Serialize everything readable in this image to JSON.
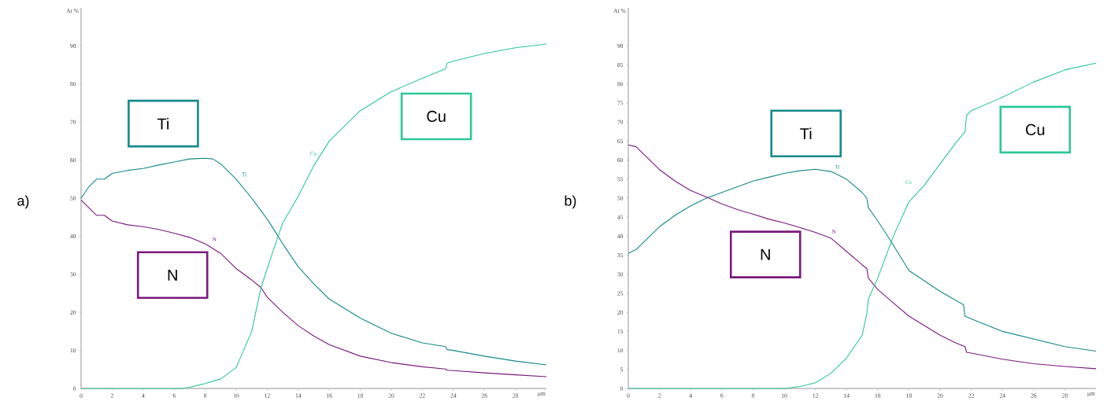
{
  "chart_data": [
    {
      "type": "line",
      "title": "a)",
      "xlabel": "μm",
      "ylabel": "At %",
      "xlim": [
        0,
        30
      ],
      "ylim": [
        0,
        100
      ],
      "xticks": [
        0,
        2,
        4,
        6,
        8,
        10,
        12,
        14,
        16,
        18,
        20,
        22,
        24,
        26,
        28
      ],
      "yticks": [
        0,
        10,
        20,
        30,
        40,
        50,
        60,
        70,
        80,
        90
      ],
      "grid": false,
      "legend": false,
      "marker": "none",
      "line_style": "solid",
      "series": [
        {
          "name": "Ti",
          "color": "#16898a",
          "x": [
            0,
            0.5,
            1,
            1.5,
            2,
            3,
            4,
            5,
            6,
            7,
            8,
            8.5,
            9,
            10,
            11,
            12,
            12.7,
            13,
            14,
            15,
            16,
            18,
            20,
            22,
            23.5,
            23.6,
            24,
            26,
            28,
            30
          ],
          "values": [
            50,
            53,
            55,
            55,
            56.5,
            57.3,
            57.8,
            58.7,
            59.5,
            60.3,
            60.5,
            60.3,
            59,
            55,
            50,
            44.5,
            40,
            38,
            32,
            27.5,
            23.5,
            18.5,
            14.5,
            12,
            11,
            10.2,
            10,
            8.5,
            7.2,
            6.2
          ]
        },
        {
          "name": "N",
          "color": "#7a1a7e",
          "x": [
            0,
            0.5,
            1,
            1.5,
            2,
            3,
            4,
            5,
            6,
            7,
            8,
            9,
            10,
            11,
            11.6,
            12,
            13,
            14,
            15,
            16,
            18,
            20,
            22,
            23.5,
            23.6,
            24,
            26,
            28,
            30
          ],
          "values": [
            49.5,
            47.5,
            45.5,
            45.5,
            44,
            43,
            42.5,
            41.8,
            40.8,
            39.7,
            38,
            35.5,
            31.5,
            28.5,
            26.5,
            24,
            20,
            16.5,
            13.8,
            11.5,
            8.5,
            6.8,
            5.7,
            5.1,
            4.8,
            4.7,
            4.1,
            3.6,
            3.1
          ]
        },
        {
          "name": "Cu",
          "color": "#2ec797",
          "x": [
            0,
            6.5,
            7,
            8,
            9,
            10,
            11,
            11.6,
            12,
            12.7,
            13,
            14,
            15,
            16,
            18,
            20,
            22,
            23.5,
            23.6,
            24,
            26,
            28,
            30
          ],
          "values": [
            0,
            0,
            0.3,
            1.3,
            2.5,
            5.5,
            15,
            26.5,
            31.5,
            40,
            43.5,
            50.5,
            58.5,
            65,
            73,
            78,
            81.5,
            84,
            85.5,
            86,
            88,
            89.5,
            90.5
          ]
        }
      ],
      "annotations": [
        "Ti",
        "N",
        "Cu"
      ]
    },
    {
      "type": "line",
      "title": "b)",
      "xlabel": "μm",
      "ylabel": "At %",
      "xlim": [
        0,
        30
      ],
      "ylim": [
        0,
        100
      ],
      "xticks": [
        0,
        2,
        4,
        6,
        8,
        10,
        12,
        14,
        16,
        18,
        20,
        22,
        24,
        26,
        28
      ],
      "yticks": [
        0,
        5,
        10,
        15,
        20,
        25,
        30,
        35,
        40,
        45,
        50,
        55,
        60,
        65,
        70,
        75,
        80,
        85,
        90
      ],
      "grid": false,
      "legend": false,
      "marker": "none",
      "line_style": "solid",
      "series": [
        {
          "name": "Ti",
          "color": "#16898a",
          "x": [
            0,
            0.5,
            1,
            2,
            3,
            4,
            5,
            6,
            7,
            8,
            9,
            10,
            11,
            12,
            13,
            14,
            15,
            15.3,
            15.4,
            16,
            16.8,
            18,
            20,
            21.5,
            21.6,
            22,
            24,
            26,
            28,
            30
          ],
          "values": [
            35.5,
            36.5,
            38.5,
            42.5,
            45.5,
            48,
            50,
            51.5,
            53,
            54.5,
            55.5,
            56.5,
            57.2,
            57.6,
            57,
            55,
            51.5,
            50,
            47.5,
            44,
            39,
            31,
            25.5,
            22,
            19,
            18.3,
            15,
            13,
            11,
            9.8
          ]
        },
        {
          "name": "N",
          "color": "#7a1a7e",
          "x": [
            0,
            0.5,
            1,
            2,
            3,
            4,
            5,
            6,
            7,
            8,
            9,
            10,
            11,
            12,
            13,
            14,
            15,
            15.3,
            15.4,
            16,
            17,
            18,
            19,
            20,
            21,
            21.6,
            21.7,
            22,
            24,
            26,
            28,
            30
          ],
          "values": [
            64,
            63.5,
            61.5,
            57.5,
            54.5,
            52,
            50.3,
            48.5,
            47,
            45.8,
            44.5,
            43.5,
            42.3,
            41,
            39.5,
            36,
            32.5,
            31.5,
            29,
            26,
            22.5,
            19,
            16.5,
            14,
            12,
            11,
            9.5,
            9.3,
            7.7,
            6.5,
            5.8,
            5.2
          ]
        },
        {
          "name": "Cu",
          "color": "#2ec797",
          "x": [
            0,
            10,
            11,
            12,
            13,
            14,
            15,
            15.3,
            15.4,
            16,
            17,
            18,
            19,
            20,
            21,
            21.6,
            21.7,
            22,
            24,
            26,
            28,
            30
          ],
          "values": [
            0,
            0,
            0.5,
            1.5,
            4,
            8,
            14,
            19.6,
            23.5,
            29,
            40,
            49,
            53.5,
            59,
            64.5,
            67.5,
            71.8,
            73,
            76.5,
            80.5,
            83.7,
            85.5
          ]
        }
      ],
      "annotations": [
        "Ti",
        "N",
        "Cu"
      ]
    }
  ]
}
